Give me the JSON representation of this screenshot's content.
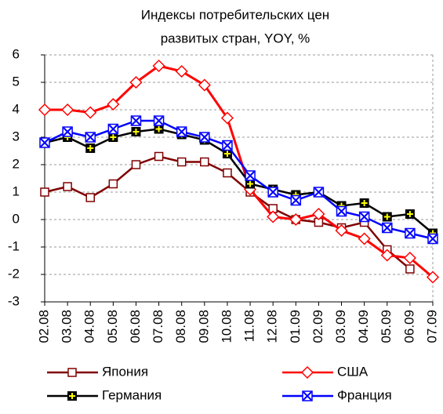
{
  "chart_data": {
    "type": "line",
    "title": [
      "Индексы потребительских цен",
      "развитых стран, YOY, %"
    ],
    "categories": [
      "02.08",
      "03.08",
      "04.08",
      "05.08",
      "06.08",
      "07.08",
      "08.08",
      "09.08",
      "10.08",
      "11.08",
      "12.08",
      "01.09",
      "02.09",
      "03.09",
      "04.09",
      "05.09",
      "06.09",
      "07.09"
    ],
    "series": [
      {
        "name": "Япония",
        "color": "#800000",
        "marker": "square",
        "values": [
          1.0,
          1.2,
          0.8,
          1.3,
          2.0,
          2.3,
          2.1,
          2.1,
          1.7,
          1.0,
          0.4,
          0.0,
          -0.1,
          -0.3,
          -0.1,
          -1.1,
          -1.8,
          null
        ]
      },
      {
        "name": "США",
        "color": "#ff0000",
        "marker": "diamond",
        "values": [
          4.0,
          4.0,
          3.9,
          4.2,
          5.0,
          5.6,
          5.4,
          4.9,
          3.7,
          1.1,
          0.1,
          0.0,
          0.2,
          -0.4,
          -0.7,
          -1.3,
          -1.4,
          -2.1
        ]
      },
      {
        "name": "Германия",
        "color": "#000000",
        "marker": "plus",
        "values": [
          2.8,
          3.0,
          2.6,
          3.0,
          3.2,
          3.3,
          3.1,
          2.9,
          2.4,
          1.3,
          1.1,
          0.9,
          1.0,
          0.5,
          0.6,
          0.1,
          0.2,
          -0.5
        ]
      },
      {
        "name": "Франция",
        "color": "#0000ff",
        "marker": "cross",
        "values": [
          2.8,
          3.2,
          3.0,
          3.3,
          3.6,
          3.6,
          3.2,
          3.0,
          2.7,
          1.6,
          1.0,
          0.7,
          1.0,
          0.3,
          0.1,
          -0.3,
          -0.5,
          -0.7
        ]
      }
    ],
    "ylim": [
      -3,
      6
    ],
    "yticks": [
      -3,
      -2,
      -1,
      0,
      1,
      2,
      3,
      4,
      5,
      6
    ],
    "grid": true
  }
}
